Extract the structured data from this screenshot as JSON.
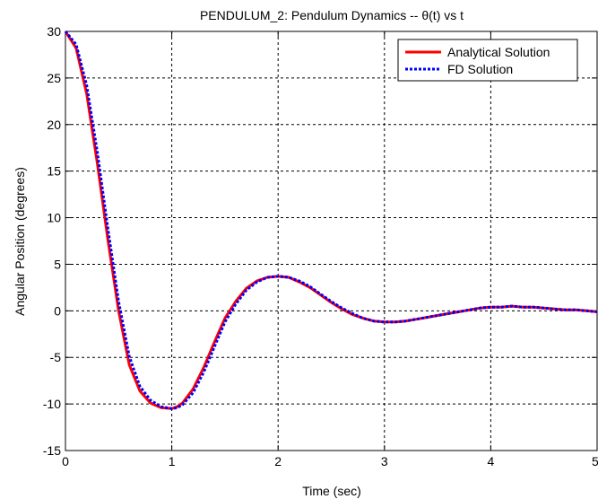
{
  "chart_data": {
    "type": "line",
    "title": "PENDULUM_2: Pendulum Dynamics  --  θ(t) vs t",
    "xlabel": "Time (sec)",
    "ylabel": "Angular Position (degrees)",
    "xlim": [
      0,
      5
    ],
    "ylim": [
      -15,
      30
    ],
    "xticks": [
      "0",
      "1",
      "2",
      "3",
      "4",
      "5"
    ],
    "yticks": [
      "-15",
      "-10",
      "-5",
      "0",
      "5",
      "10",
      "15",
      "20",
      "25",
      "30"
    ],
    "grid": true,
    "legend_position": "top-right",
    "series": [
      {
        "name": "Analytical Solution",
        "color": "#ff0000",
        "style": "solid",
        "x": [
          0,
          0.1,
          0.2,
          0.3,
          0.4,
          0.5,
          0.6,
          0.7,
          0.8,
          0.9,
          1.0,
          1.05,
          1.1,
          1.2,
          1.3,
          1.4,
          1.5,
          1.6,
          1.7,
          1.8,
          1.9,
          2.0,
          2.1,
          2.2,
          2.3,
          2.4,
          2.5,
          2.6,
          2.7,
          2.8,
          2.9,
          3.0,
          3.1,
          3.2,
          3.3,
          3.4,
          3.5,
          3.6,
          3.7,
          3.8,
          3.9,
          4.0,
          4.1,
          4.2,
          4.3,
          4.4,
          4.5,
          4.6,
          4.7,
          4.8,
          4.9,
          5.0
        ],
        "y": [
          30,
          28.2,
          23.3,
          15.8,
          7.6,
          0.0,
          -5.8,
          -8.6,
          -9.9,
          -10.4,
          -10.5,
          -10.3,
          -9.9,
          -8.4,
          -6.1,
          -3.4,
          -0.8,
          1.0,
          2.4,
          3.2,
          3.6,
          3.7,
          3.6,
          3.1,
          2.5,
          1.7,
          0.9,
          0.2,
          -0.4,
          -0.8,
          -1.1,
          -1.2,
          -1.2,
          -1.1,
          -0.9,
          -0.7,
          -0.5,
          -0.3,
          -0.1,
          0.1,
          0.3,
          0.4,
          0.4,
          0.5,
          0.4,
          0.4,
          0.3,
          0.2,
          0.1,
          0.1,
          0.0,
          -0.1
        ]
      },
      {
        "name": "FD Solution",
        "color": "#0000ff",
        "style": "dotted",
        "x": [
          0,
          0.1,
          0.2,
          0.3,
          0.4,
          0.5,
          0.6,
          0.7,
          0.8,
          0.9,
          1.0,
          1.05,
          1.1,
          1.2,
          1.3,
          1.4,
          1.5,
          1.6,
          1.7,
          1.8,
          1.9,
          2.0,
          2.1,
          2.2,
          2.3,
          2.4,
          2.5,
          2.6,
          2.7,
          2.8,
          2.9,
          3.0,
          3.1,
          3.2,
          3.3,
          3.4,
          3.5,
          3.6,
          3.7,
          3.8,
          3.9,
          4.0,
          4.1,
          4.2,
          4.3,
          4.4,
          4.5,
          4.6,
          4.7,
          4.8,
          4.9,
          5.0
        ],
        "y": [
          30,
          28.6,
          24.2,
          17.0,
          8.8,
          1.0,
          -4.9,
          -8.1,
          -9.6,
          -10.3,
          -10.5,
          -10.4,
          -10.1,
          -8.8,
          -6.6,
          -3.9,
          -1.2,
          0.7,
          2.2,
          3.1,
          3.6,
          3.7,
          3.6,
          3.2,
          2.6,
          1.8,
          1.0,
          0.3,
          -0.3,
          -0.8,
          -1.1,
          -1.2,
          -1.2,
          -1.1,
          -0.9,
          -0.7,
          -0.5,
          -0.3,
          -0.1,
          0.1,
          0.3,
          0.4,
          0.4,
          0.5,
          0.4,
          0.4,
          0.3,
          0.2,
          0.1,
          0.1,
          0.0,
          -0.1
        ]
      }
    ]
  }
}
